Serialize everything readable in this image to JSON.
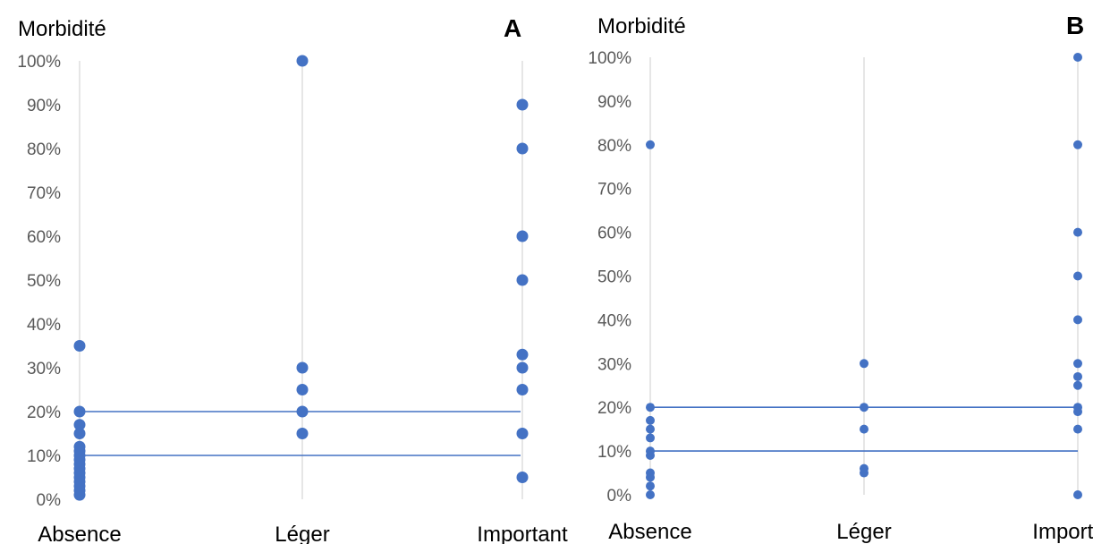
{
  "chart_data": [
    {
      "type": "scatter",
      "panel_label": "A",
      "ylabel": "Morbidité",
      "categories": [
        "Absence",
        "Léger",
        "Important"
      ],
      "y_ticks": [
        "0%",
        "10%",
        "20%",
        "30%",
        "40%",
        "50%",
        "60%",
        "70%",
        "80%",
        "90%",
        "100%"
      ],
      "ylim": [
        0,
        100
      ],
      "grid": "vertical lines at categories",
      "reference_lines": [
        10,
        20
      ],
      "points": {
        "Absence": [
          35,
          20,
          17,
          15,
          12,
          11,
          10,
          9,
          8,
          7,
          6,
          5,
          4,
          3,
          2,
          1
        ],
        "Léger": [
          100,
          30,
          25,
          20,
          15
        ],
        "Important": [
          90,
          80,
          60,
          50,
          33,
          30,
          25,
          15,
          5
        ]
      },
      "color": "#4472c4"
    },
    {
      "type": "scatter",
      "panel_label": "B",
      "ylabel": "Morbidité",
      "categories": [
        "Absence",
        "Léger",
        "Important"
      ],
      "y_ticks": [
        "0%",
        "10%",
        "20%",
        "30%",
        "40%",
        "50%",
        "60%",
        "70%",
        "80%",
        "90%",
        "100%"
      ],
      "ylim": [
        0,
        100
      ],
      "grid": "vertical lines at categories",
      "reference_lines": [
        10,
        20
      ],
      "points": {
        "Absence": [
          80,
          20,
          17,
          15,
          13,
          10,
          9,
          5,
          4,
          2,
          0
        ],
        "Léger": [
          30,
          20,
          15,
          6,
          5
        ],
        "Important": [
          100,
          80,
          60,
          50,
          40,
          30,
          27,
          25,
          20,
          19,
          15,
          0
        ]
      },
      "color": "#4472c4"
    }
  ]
}
